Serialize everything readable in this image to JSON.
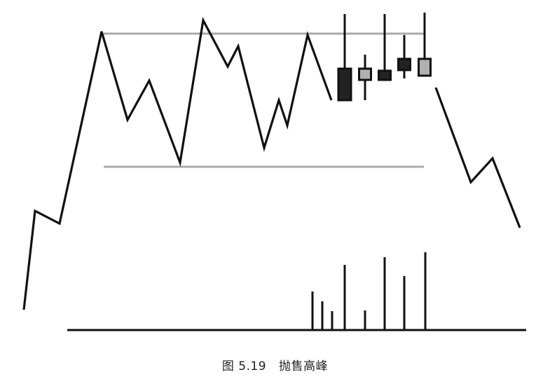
{
  "caption": {
    "figure_number": "图 5.19",
    "title": "抛售高峰"
  },
  "colors": {
    "price_line": "#111111",
    "reference_lines": "#aaaaaa",
    "candle_dark": "#222222",
    "candle_light": "#b0b0b0",
    "candle_outline": "#111111",
    "volume_bars": "#111111",
    "baseline": "#111111"
  },
  "diagram": {
    "elements": [
      "price-line",
      "resistance-line",
      "support-line",
      "candlesticks",
      "volume-bars",
      "volume-baseline"
    ],
    "candles": [
      {
        "fill": "dark"
      },
      {
        "fill": "light"
      },
      {
        "fill": "dark"
      },
      {
        "fill": "dark"
      },
      {
        "fill": "light"
      }
    ],
    "volume_levels": [
      0.55,
      0.41,
      0.27,
      0.93,
      0.28,
      1.04,
      0.77,
      1.11
    ]
  }
}
